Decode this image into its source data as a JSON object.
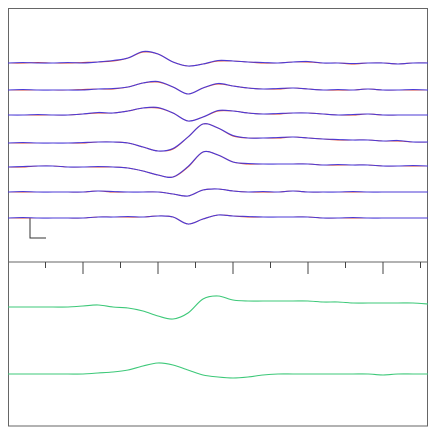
{
  "chart_data": [
    {
      "type": "line",
      "x": [
        0,
        1,
        2,
        3,
        4,
        5,
        6,
        7,
        8,
        9,
        10,
        11,
        12,
        13,
        14,
        15,
        16,
        17,
        18,
        19,
        20,
        21,
        22,
        23,
        24,
        25,
        26,
        27,
        28
      ],
      "xlim": [
        0,
        28
      ],
      "ylim": [
        0,
        254
      ],
      "series": [
        {
          "color": "#d8402c",
          "values": [
            199,
            199,
            199.5,
            199,
            199,
            199.5,
            200,
            201,
            204,
            210,
            208,
            200,
            196,
            198,
            201,
            201,
            200,
            199,
            199,
            200,
            200,
            199,
            199,
            198,
            199,
            199,
            198,
            199,
            199
          ]
        },
        {
          "color": "#4b3ad6",
          "values": [
            199,
            199.5,
            199,
            199,
            199.5,
            199,
            200,
            201.5,
            204,
            210.5,
            208,
            200,
            196,
            198,
            201.5,
            201,
            200,
            199.5,
            199,
            200,
            200.5,
            199,
            199,
            198.5,
            199,
            199,
            198,
            199,
            199
          ]
        },
        {
          "color": "#d8402c",
          "values": [
            172,
            172,
            172,
            172,
            172,
            172.5,
            173,
            173,
            175,
            179,
            180,
            175,
            168,
            174,
            178,
            176,
            174,
            173,
            173,
            174,
            173,
            172,
            172,
            172,
            173,
            172,
            172,
            172,
            172
          ]
        },
        {
          "color": "#4b3ad6",
          "values": [
            172,
            172.5,
            172,
            172,
            172,
            172,
            173,
            173.5,
            175,
            179,
            180.5,
            175,
            168,
            174,
            178.5,
            176,
            174,
            173,
            173.5,
            174,
            173,
            172,
            172.5,
            172,
            173,
            172,
            172,
            172.5,
            172
          ]
        },
        {
          "color": "#d8402c",
          "values": [
            147,
            147,
            147,
            147,
            147,
            148,
            149,
            149,
            151,
            154,
            154,
            149,
            141,
            145,
            151,
            151,
            149,
            148,
            148,
            149,
            149,
            148,
            147,
            147,
            148,
            147,
            147,
            147,
            147
          ]
        },
        {
          "color": "#4b3ad6",
          "values": [
            147,
            147,
            147.5,
            147,
            147,
            148,
            149.5,
            149,
            151,
            154,
            154.5,
            149,
            141,
            145,
            151.5,
            151,
            149,
            148,
            148.5,
            149,
            149,
            148,
            147,
            147.5,
            148,
            147,
            147,
            147,
            147
          ]
        },
        {
          "color": "#d8402c",
          "values": [
            119,
            119,
            119,
            119,
            119,
            119,
            120,
            120,
            119,
            115,
            111,
            113,
            125,
            138,
            134,
            126,
            124,
            124,
            124,
            125,
            124,
            123,
            122,
            122,
            122,
            121,
            121,
            120,
            120
          ]
        },
        {
          "color": "#4b3ad6",
          "values": [
            119,
            119.5,
            119,
            119,
            119,
            119.5,
            120,
            120,
            119,
            115,
            111,
            113.5,
            125,
            138,
            134,
            126.5,
            124,
            124,
            124.5,
            125,
            124,
            123,
            122.5,
            122,
            122,
            121,
            121.5,
            120,
            120
          ]
        },
        {
          "color": "#d8402c",
          "values": [
            95,
            95,
            96,
            96,
            95,
            95,
            95,
            95,
            94,
            91,
            87,
            85,
            95,
            110,
            107,
            100,
            98,
            98,
            98,
            98,
            98,
            97,
            97,
            97,
            97,
            96,
            96,
            96,
            96
          ]
        },
        {
          "color": "#4b3ad6",
          "values": [
            95,
            95.5,
            96,
            96,
            95,
            95,
            95.5,
            95,
            94,
            91,
            87,
            85,
            95.5,
            110,
            107,
            100,
            98.5,
            98,
            98,
            98,
            98,
            97,
            97.5,
            97,
            97,
            96,
            96,
            96.5,
            96
          ]
        },
        {
          "color": "#d8402c",
          "values": [
            70,
            70,
            70,
            70,
            70,
            70,
            71,
            70,
            70,
            70,
            70,
            68,
            66,
            72,
            73,
            71,
            70,
            70,
            70,
            71,
            70,
            70,
            70,
            70,
            70,
            70,
            70,
            70,
            70
          ]
        },
        {
          "color": "#4b3ad6",
          "values": [
            70,
            70.5,
            70,
            70,
            70,
            70,
            71,
            70.5,
            70,
            70,
            70,
            68,
            66,
            72,
            73,
            71,
            70,
            70.5,
            70,
            71,
            70,
            70,
            70,
            70.5,
            70,
            70,
            70,
            70,
            70
          ]
        },
        {
          "color": "#d8402c",
          "values": [
            44,
            44,
            44,
            44,
            44,
            44,
            45,
            45,
            45,
            45,
            46,
            45,
            38,
            43,
            47,
            46,
            45,
            45,
            45,
            45,
            45,
            44,
            44,
            44,
            44,
            44,
            44,
            44,
            44
          ]
        },
        {
          "color": "#4b3ad6",
          "values": [
            44,
            44.5,
            44,
            44,
            44,
            44,
            45,
            45,
            45.5,
            45,
            46,
            45,
            38,
            43,
            47,
            46,
            45.5,
            45,
            45,
            45,
            45,
            44,
            44,
            44.5,
            44,
            44,
            44,
            44,
            44
          ]
        }
      ]
    },
    {
      "type": "line",
      "x": [
        0,
        1,
        2,
        3,
        4,
        5,
        6,
        7,
        8,
        9,
        10,
        11,
        12,
        13,
        14,
        15,
        16,
        17,
        18,
        19,
        20,
        21,
        22,
        23,
        24,
        25,
        26,
        27,
        28
      ],
      "xlim": [
        0,
        28
      ],
      "ylim": [
        0,
        164
      ],
      "xticks": [
        2.5,
        5,
        7.5,
        10,
        12.5,
        15,
        17.5,
        20,
        22.5,
        25,
        27.5
      ],
      "series": [
        {
          "color": "#3cc878",
          "values": [
            119,
            119,
            119,
            119,
            119,
            120,
            121,
            119,
            118,
            115,
            110,
            107,
            113,
            127,
            130,
            126,
            125,
            125,
            125,
            125,
            125,
            124,
            124,
            123,
            123,
            123,
            123,
            123,
            122
          ]
        },
        {
          "color": "#3cc878",
          "values": [
            52,
            52,
            52,
            52,
            52,
            52,
            53,
            54,
            56,
            60,
            63,
            61,
            56,
            51,
            49,
            48,
            49,
            51,
            52,
            52,
            52,
            52,
            52,
            52,
            52,
            51,
            52,
            52,
            52
          ]
        }
      ]
    }
  ]
}
